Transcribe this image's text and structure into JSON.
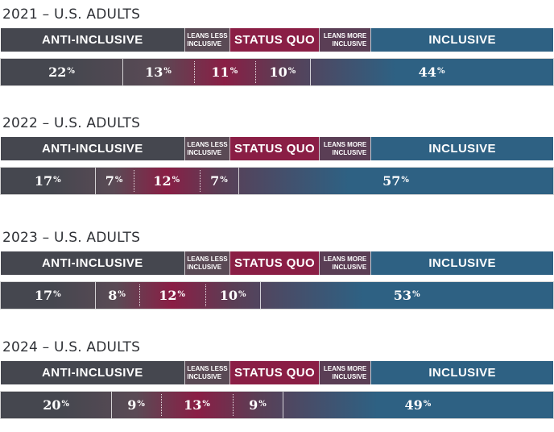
{
  "header": {
    "anti_inclusive": "ANTI-INCLUSIVE",
    "leans_less_line1": "LEANS LESS",
    "leans_less_line2": "INCLUSIVE",
    "status_quo": "STATUS QUO",
    "leans_more_line1": "LEANS MORE",
    "leans_more_line2": "INCLUSIVE",
    "inclusive": "INCLUSIVE"
  },
  "colors": {
    "anti_inclusive": "#45474f",
    "leans_less": "#5a4a55",
    "status_quo": "#8a1e45",
    "leans_more": "#5a3e55",
    "inclusive": "#2e6183"
  },
  "chart_data": {
    "type": "bar",
    "orientation": "horizontal-stacked",
    "percent_symbol": "%",
    "categories": [
      "Anti-inclusive",
      "Leans less inclusive",
      "Status quo",
      "Leans more inclusive",
      "Inclusive"
    ],
    "charts": [
      {
        "title": "2021 – U.S. ADULTS",
        "values": [
          22,
          13,
          11,
          10,
          44
        ]
      },
      {
        "title": "2022 – U.S. ADULTS",
        "values": [
          17,
          7,
          12,
          7,
          57
        ]
      },
      {
        "title": "2023 – U.S. ADULTS",
        "values": [
          17,
          8,
          12,
          10,
          53
        ]
      },
      {
        "title": "2024 – U.S. ADULTS",
        "values": [
          20,
          9,
          13,
          9,
          49
        ]
      }
    ]
  }
}
